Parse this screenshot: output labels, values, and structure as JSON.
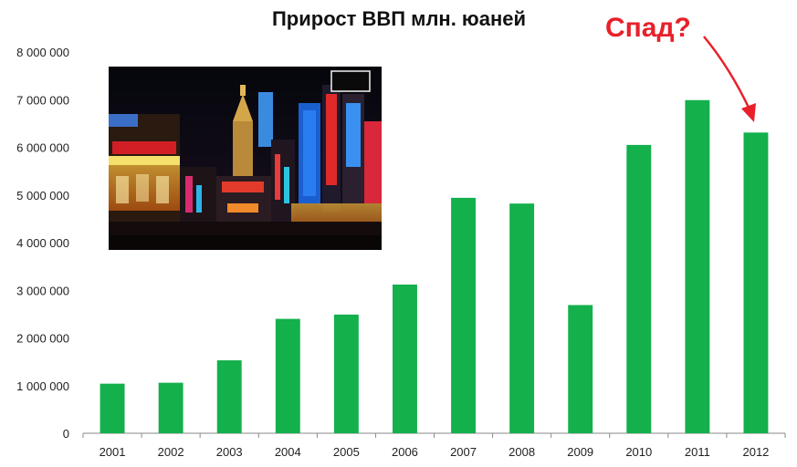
{
  "chart_data": {
    "type": "bar",
    "title": "Прирост ВВП млн. юаней",
    "xlabel": "",
    "ylabel": "",
    "categories": [
      "2001",
      "2002",
      "2003",
      "2004",
      "2005",
      "2006",
      "2007",
      "2008",
      "2009",
      "2010",
      "2011",
      "2012"
    ],
    "values": [
      1040000,
      1060000,
      1530000,
      2400000,
      2490000,
      3120000,
      4940000,
      4820000,
      2690000,
      6050000,
      6990000,
      6310000
    ],
    "ylim": [
      0,
      8000000
    ],
    "yticks": [
      0,
      1000000,
      2000000,
      3000000,
      4000000,
      5000000,
      6000000,
      7000000,
      8000000
    ],
    "ytick_labels": [
      "0",
      "1 000 000",
      "2 000 000",
      "3 000 000",
      "4 000 000",
      "5 000 000",
      "6 000 000",
      "7 000 000",
      "8 000 000"
    ],
    "grid": false,
    "legend": false,
    "bar_color": "#13b04b",
    "annotation": {
      "text": "Спад?",
      "color": "#e8202a",
      "points_to": "2012"
    },
    "inset_photo": {
      "description_icon": "night-city-street-photo"
    }
  }
}
